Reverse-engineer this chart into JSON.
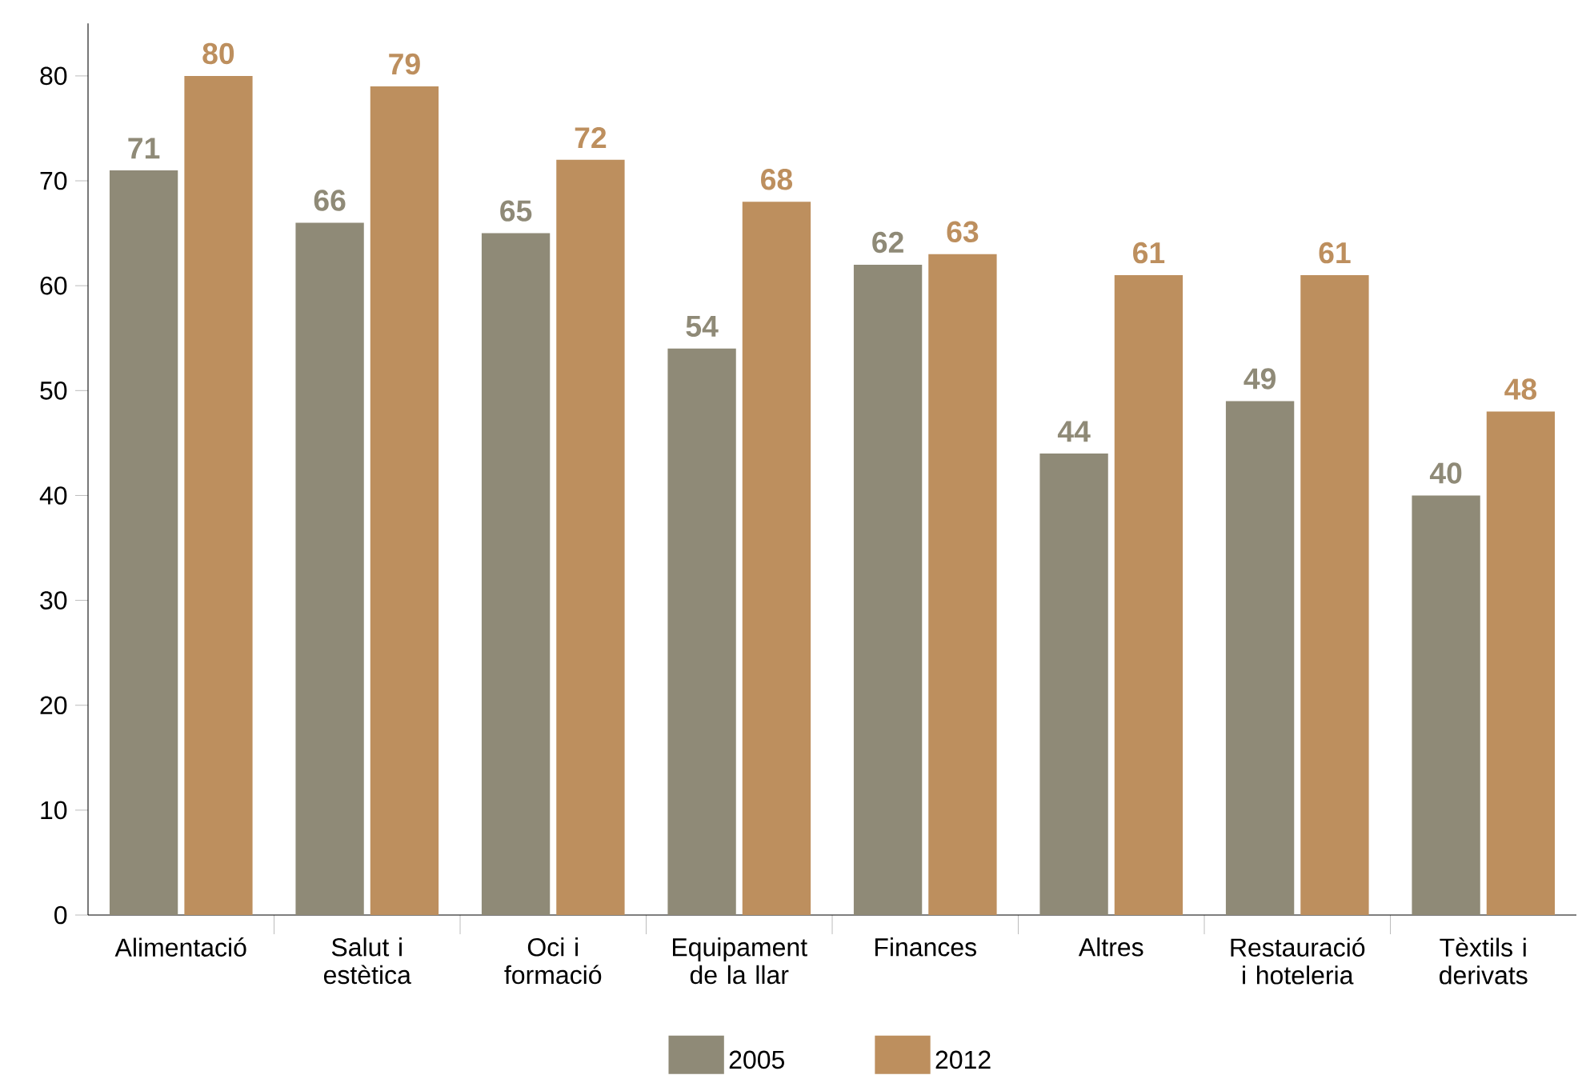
{
  "chart_data": {
    "type": "bar",
    "categories": [
      "Alimentació",
      "Salut i estètica",
      "Oci i formació",
      "Equipament de la llar",
      "Finances",
      "Altres",
      "Restauració i hoteleria",
      "Tèxtils i derivats"
    ],
    "series": [
      {
        "name": "2005",
        "color": "#8f8a77",
        "values": [
          71,
          66,
          65,
          54,
          62,
          44,
          49,
          40
        ]
      },
      {
        "name": "2012",
        "color": "#bd8f5e",
        "values": [
          80,
          79,
          72,
          68,
          63,
          61,
          61,
          48
        ]
      }
    ],
    "ylim": [
      0,
      85
    ],
    "yticks": [
      0,
      10,
      20,
      30,
      40,
      50,
      60,
      70,
      80
    ],
    "data_labels": true,
    "legend": "bottom",
    "grid": false
  }
}
